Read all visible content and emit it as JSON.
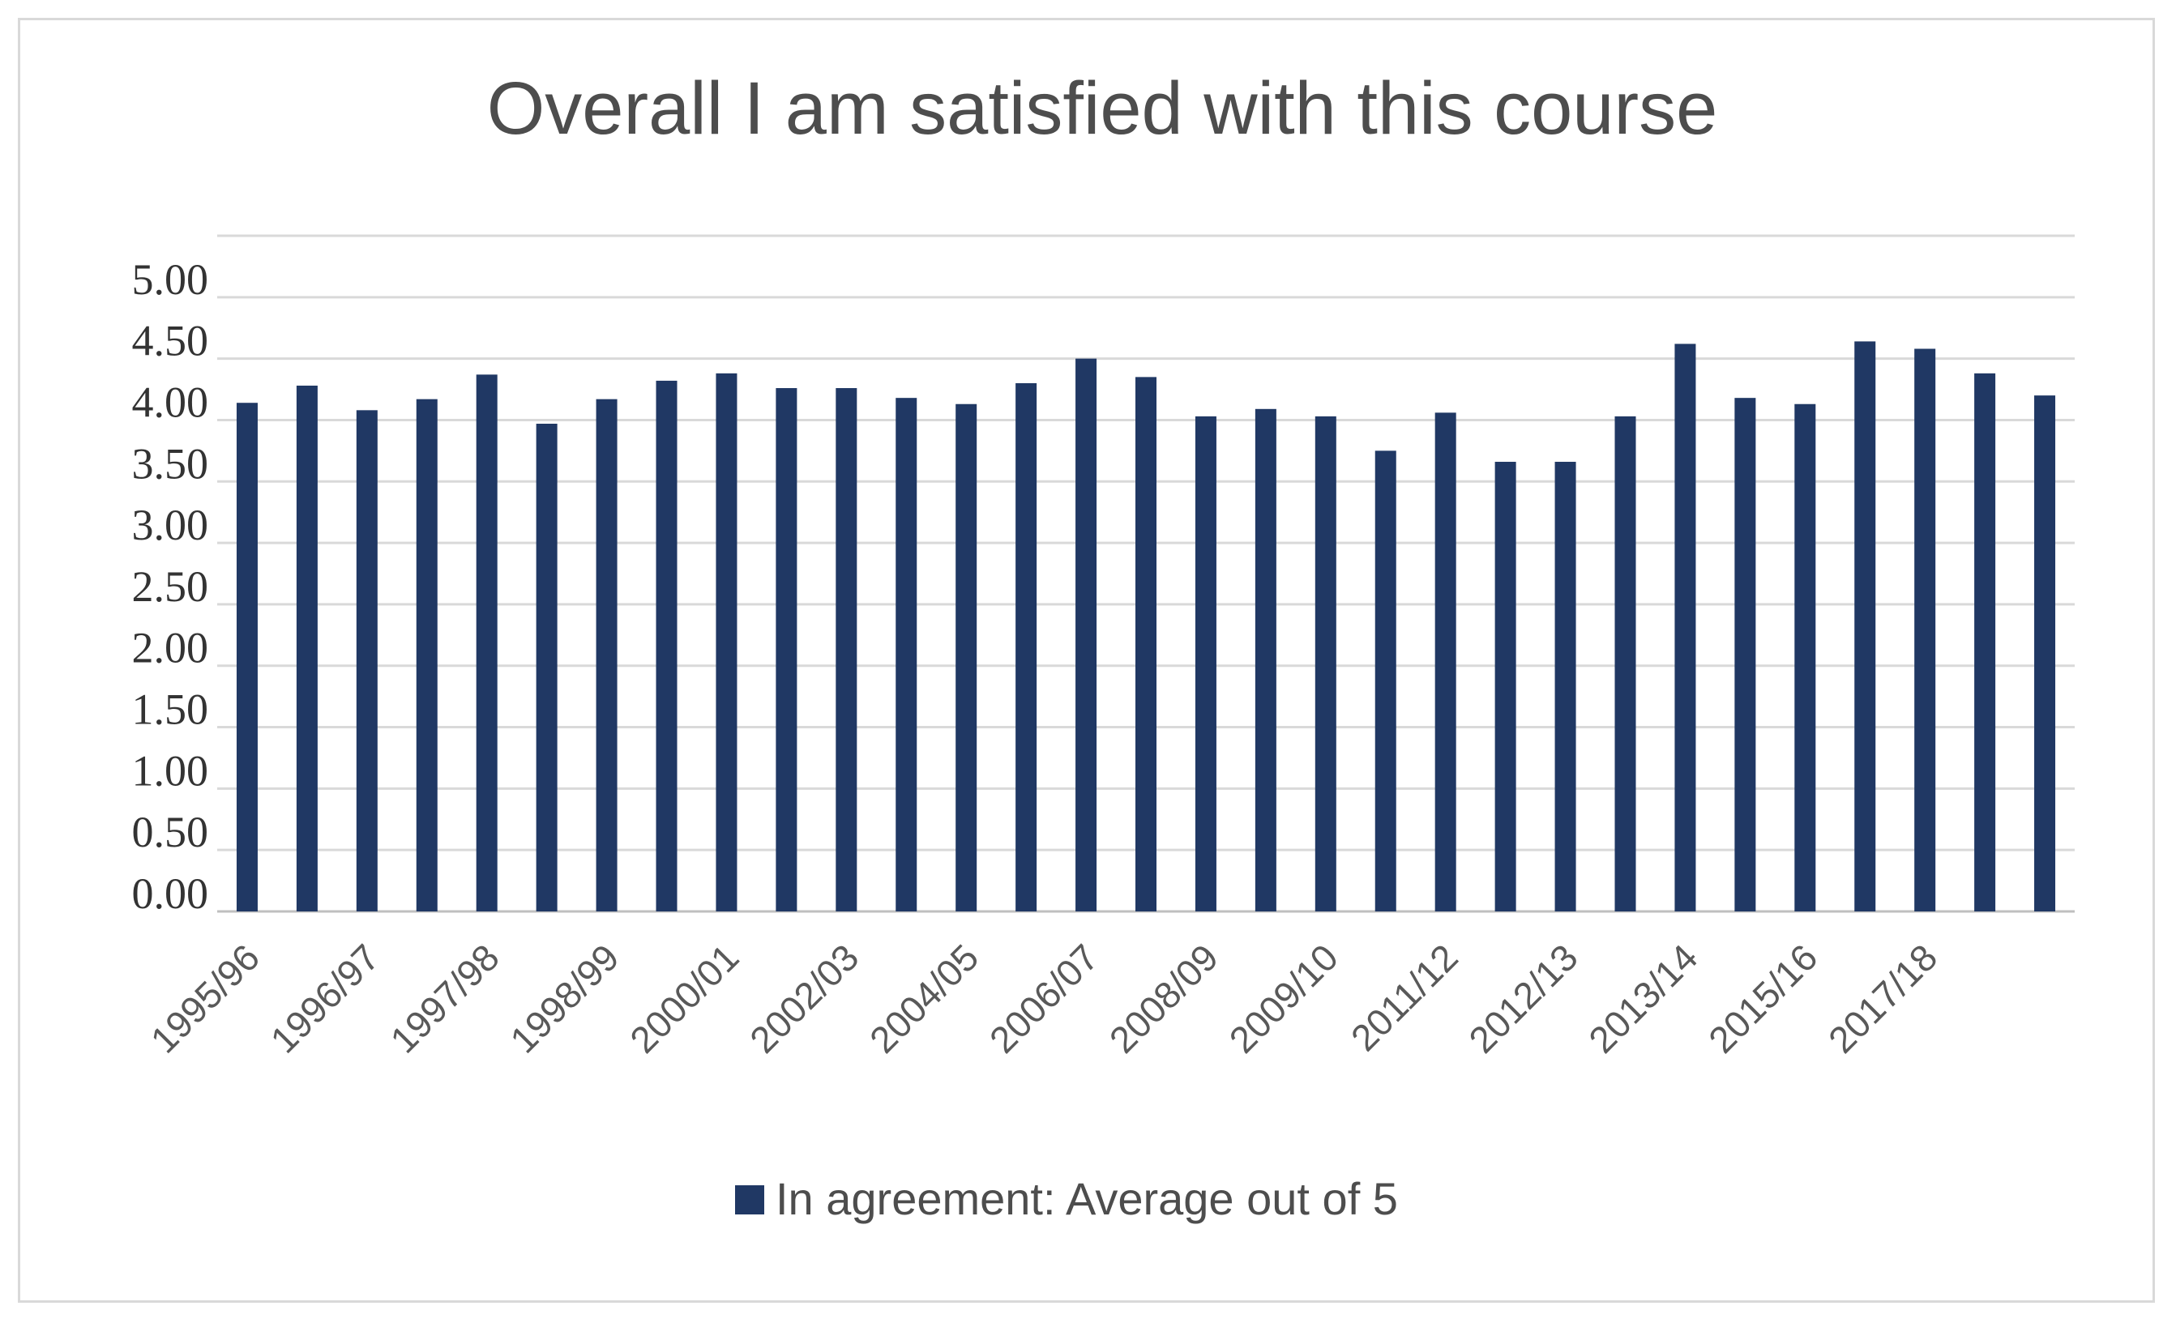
{
  "chart_data": {
    "type": "bar",
    "title": "Overall I am satisfied with this course",
    "xlabel": "",
    "ylabel": "",
    "ylim": [
      0,
      5.5
    ],
    "yticks": [
      "0.00",
      "0.50",
      "1.00",
      "1.50",
      "2.00",
      "2.50",
      "3.00",
      "3.50",
      "4.00",
      "4.50",
      "5.00"
    ],
    "grid": true,
    "legend_position": "bottom",
    "bar_color": "#203864",
    "categories": [
      "1995/96",
      "",
      "1996/97",
      "",
      "1997/98",
      "",
      "1998/99",
      "",
      "2000/01",
      "",
      "2002/03",
      "",
      "2004/05",
      "",
      "2006/07",
      "",
      "2008/09",
      "",
      "2009/10",
      "",
      "2011/12",
      "",
      "2012/13",
      "",
      "2013/14",
      "",
      "2015/16",
      "",
      "2017/18",
      "",
      ""
    ],
    "series": [
      {
        "name": "In agreement: Average out of 5",
        "values": [
          4.14,
          4.28,
          4.08,
          4.17,
          4.37,
          3.97,
          4.17,
          4.32,
          4.38,
          4.26,
          4.26,
          4.18,
          4.13,
          4.3,
          4.5,
          4.35,
          4.03,
          4.09,
          4.03,
          3.75,
          4.06,
          3.66,
          3.66,
          4.03,
          4.62,
          4.18,
          4.13,
          4.64,
          4.58,
          4.38,
          4.2
        ]
      }
    ]
  }
}
